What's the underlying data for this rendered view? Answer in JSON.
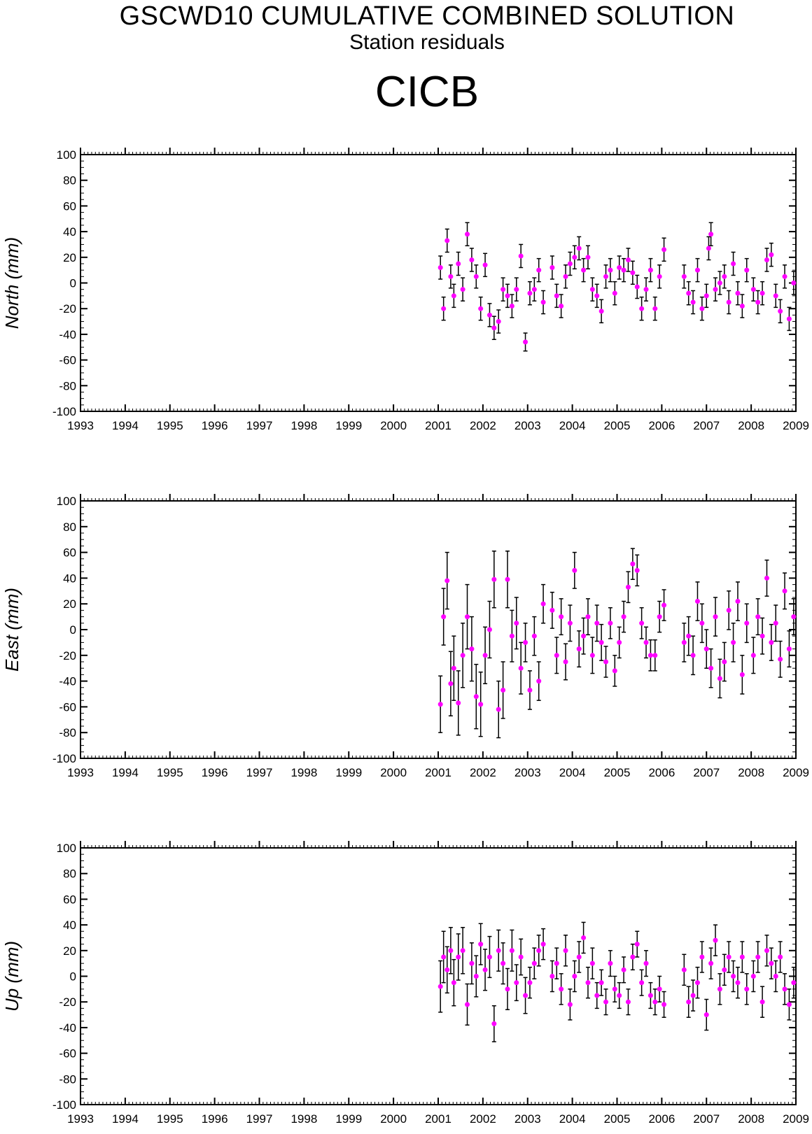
{
  "header": {
    "title": "GSCWD10 CUMULATIVE COMBINED SOLUTION",
    "subtitle": "Station residuals",
    "station": "CICB"
  },
  "colors": {
    "point": "#ff00ff",
    "errorbar": "#000000",
    "axis": "#000000"
  },
  "chart_data": [
    {
      "type": "scatter",
      "ylabel": "North (mm)",
      "xlim": [
        1993,
        2009
      ],
      "ylim": [
        -100,
        100
      ],
      "xticks": [
        "1993",
        "1994",
        "1995",
        "1996",
        "1997",
        "1998",
        "1999",
        "2000",
        "2001",
        "2002",
        "2003",
        "2004",
        "2005",
        "2006",
        "2007",
        "2008",
        "2009"
      ],
      "yticks": [
        "100",
        "80",
        "60",
        "40",
        "20",
        "0",
        "-20",
        "-40",
        "-60",
        "-80",
        "-100"
      ],
      "grid": false,
      "series": [
        {
          "x": [
            2001.05,
            2001.12,
            2001.2,
            2001.28,
            2001.35,
            2001.45,
            2001.55,
            2001.65,
            2001.75,
            2001.85,
            2001.95,
            2002.05,
            2002.15,
            2002.25,
            2002.35,
            2002.45,
            2002.55,
            2002.65,
            2002.75,
            2002.85,
            2002.95,
            2003.05,
            2003.15,
            2003.25,
            2003.35,
            2003.55,
            2003.65,
            2003.75,
            2003.85,
            2003.95,
            2004.05,
            2004.15,
            2004.25,
            2004.35,
            2004.45,
            2004.55,
            2004.65,
            2004.75,
            2004.85,
            2004.95,
            2005.05,
            2005.15,
            2005.25,
            2005.35,
            2005.45,
            2005.55,
            2005.65,
            2005.75,
            2005.85,
            2005.95,
            2006.05,
            2006.5,
            2006.6,
            2006.7,
            2006.8,
            2006.9,
            2007.0,
            2007.05,
            2007.1,
            2007.2,
            2007.3,
            2007.4,
            2007.5,
            2007.6,
            2007.7,
            2007.8,
            2007.9,
            2008.05,
            2008.15,
            2008.25,
            2008.35,
            2008.45,
            2008.55,
            2008.65,
            2008.75,
            2008.85,
            2008.95
          ],
          "y": [
            12,
            -20,
            33,
            5,
            -10,
            15,
            -5,
            38,
            18,
            5,
            -20,
            14,
            -25,
            -35,
            -30,
            -5,
            -10,
            -18,
            -5,
            21,
            -46,
            -8,
            -5,
            10,
            -15,
            12,
            -10,
            -18,
            5,
            15,
            20,
            27,
            10,
            20,
            -5,
            -10,
            -22,
            5,
            10,
            -8,
            12,
            10,
            18,
            8,
            -3,
            -20,
            -5,
            10,
            -20,
            5,
            26,
            5,
            -8,
            -15,
            10,
            -20,
            -10,
            27,
            38,
            -5,
            0,
            5,
            -15,
            15,
            -8,
            -18,
            10,
            -5,
            -15,
            -8,
            18,
            22,
            -10,
            -22,
            5,
            -28,
            0
          ],
          "err": [
            9,
            9,
            9,
            9,
            9,
            9,
            9,
            9,
            9,
            9,
            9,
            9,
            9,
            9,
            9,
            9,
            9,
            9,
            9,
            9,
            7,
            9,
            9,
            9,
            9,
            9,
            9,
            9,
            9,
            9,
            9,
            9,
            9,
            9,
            9,
            9,
            9,
            9,
            9,
            9,
            9,
            9,
            9,
            9,
            9,
            9,
            9,
            9,
            9,
            9,
            9,
            9,
            9,
            9,
            9,
            9,
            9,
            9,
            9,
            9,
            9,
            9,
            9,
            9,
            9,
            9,
            9,
            9,
            9,
            9,
            9,
            9,
            9,
            9,
            9,
            9,
            9
          ]
        }
      ]
    },
    {
      "type": "scatter",
      "ylabel": "East (mm)",
      "xlim": [
        1993,
        2009
      ],
      "ylim": [
        -100,
        100
      ],
      "xticks": [
        "1993",
        "1994",
        "1995",
        "1996",
        "1997",
        "1998",
        "1999",
        "2000",
        "2001",
        "2002",
        "2003",
        "2004",
        "2005",
        "2006",
        "2007",
        "2008",
        "2009"
      ],
      "yticks": [
        "100",
        "80",
        "60",
        "40",
        "20",
        "0",
        "-20",
        "-40",
        "-60",
        "-80",
        "-100"
      ],
      "grid": false,
      "series": [
        {
          "x": [
            2001.05,
            2001.12,
            2001.2,
            2001.28,
            2001.35,
            2001.45,
            2001.55,
            2001.65,
            2001.75,
            2001.85,
            2001.95,
            2002.05,
            2002.15,
            2002.25,
            2002.35,
            2002.45,
            2002.55,
            2002.65,
            2002.75,
            2002.85,
            2002.95,
            2003.05,
            2003.15,
            2003.25,
            2003.35,
            2003.55,
            2003.65,
            2003.75,
            2003.85,
            2003.95,
            2004.05,
            2004.15,
            2004.25,
            2004.35,
            2004.45,
            2004.55,
            2004.65,
            2004.75,
            2004.85,
            2004.95,
            2005.05,
            2005.15,
            2005.25,
            2005.35,
            2005.45,
            2005.55,
            2005.65,
            2005.75,
            2005.85,
            2005.95,
            2006.05,
            2006.5,
            2006.6,
            2006.7,
            2006.8,
            2006.9,
            2007.0,
            2007.1,
            2007.2,
            2007.3,
            2007.4,
            2007.5,
            2007.6,
            2007.7,
            2007.8,
            2007.9,
            2008.05,
            2008.15,
            2008.25,
            2008.35,
            2008.45,
            2008.55,
            2008.65,
            2008.75,
            2008.85,
            2008.95
          ],
          "y": [
            -58,
            10,
            38,
            -42,
            -30,
            -57,
            -20,
            10,
            -15,
            -52,
            -58,
            -20,
            0,
            39,
            -62,
            -47,
            39,
            -5,
            5,
            -30,
            -10,
            -47,
            -5,
            -40,
            20,
            15,
            -20,
            10,
            -25,
            5,
            46,
            -15,
            -5,
            10,
            -20,
            5,
            -10,
            -25,
            5,
            -32,
            -10,
            10,
            33,
            51,
            46,
            5,
            -10,
            -20,
            -20,
            10,
            19,
            -10,
            -5,
            -20,
            22,
            5,
            -15,
            -30,
            10,
            -38,
            -25,
            15,
            -10,
            22,
            -35,
            5,
            -20,
            10,
            -5,
            40,
            -10,
            5,
            -23,
            30,
            -15,
            10
          ],
          "err": [
            22,
            22,
            22,
            25,
            25,
            25,
            25,
            25,
            25,
            25,
            25,
            22,
            22,
            22,
            22,
            22,
            22,
            20,
            20,
            20,
            15,
            15,
            15,
            15,
            15,
            14,
            14,
            14,
            14,
            14,
            14,
            14,
            14,
            14,
            14,
            14,
            14,
            12,
            12,
            12,
            12,
            12,
            12,
            12,
            12,
            12,
            12,
            12,
            12,
            12,
            12,
            15,
            15,
            15,
            15,
            15,
            15,
            15,
            15,
            15,
            15,
            15,
            15,
            15,
            15,
            15,
            14,
            14,
            14,
            14,
            14,
            14,
            14,
            14,
            14,
            14
          ]
        }
      ]
    },
    {
      "type": "scatter",
      "ylabel": "Up (mm)",
      "xlim": [
        1993,
        2009
      ],
      "ylim": [
        -100,
        100
      ],
      "xticks": [
        "1993",
        "1994",
        "1995",
        "1996",
        "1997",
        "1998",
        "1999",
        "2000",
        "2001",
        "2002",
        "2003",
        "2004",
        "2005",
        "2006",
        "2007",
        "2008",
        "2009"
      ],
      "yticks": [
        "100",
        "80",
        "60",
        "40",
        "20",
        "0",
        "-20",
        "-40",
        "-60",
        "-80",
        "-100"
      ],
      "grid": false,
      "series": [
        {
          "x": [
            2001.05,
            2001.12,
            2001.2,
            2001.28,
            2001.35,
            2001.45,
            2001.55,
            2001.65,
            2001.75,
            2001.85,
            2001.95,
            2002.05,
            2002.15,
            2002.25,
            2002.35,
            2002.45,
            2002.55,
            2002.65,
            2002.75,
            2002.85,
            2002.95,
            2003.05,
            2003.15,
            2003.25,
            2003.35,
            2003.55,
            2003.65,
            2003.75,
            2003.85,
            2003.95,
            2004.05,
            2004.15,
            2004.25,
            2004.35,
            2004.45,
            2004.55,
            2004.65,
            2004.75,
            2004.85,
            2004.95,
            2005.05,
            2005.15,
            2005.25,
            2005.35,
            2005.45,
            2005.55,
            2005.65,
            2005.75,
            2005.85,
            2005.95,
            2006.05,
            2006.5,
            2006.6,
            2006.7,
            2006.8,
            2006.9,
            2007.0,
            2007.1,
            2007.2,
            2007.3,
            2007.4,
            2007.5,
            2007.6,
            2007.7,
            2007.8,
            2007.9,
            2008.05,
            2008.15,
            2008.25,
            2008.35,
            2008.45,
            2008.55,
            2008.65,
            2008.75,
            2008.85,
            2008.95
          ],
          "y": [
            -8,
            15,
            5,
            20,
            -5,
            15,
            20,
            -22,
            10,
            0,
            25,
            5,
            15,
            -37,
            20,
            10,
            -10,
            20,
            -5,
            15,
            -15,
            -5,
            10,
            20,
            25,
            0,
            10,
            -10,
            20,
            -22,
            0,
            15,
            30,
            -5,
            10,
            -15,
            -5,
            -20,
            10,
            -10,
            -15,
            5,
            -20,
            15,
            25,
            -5,
            10,
            -15,
            -20,
            -10,
            -22,
            5,
            -20,
            -15,
            -5,
            15,
            -30,
            10,
            28,
            -10,
            5,
            15,
            0,
            -5,
            15,
            -10,
            0,
            15,
            -20,
            20,
            10,
            0,
            15,
            -10,
            -22,
            -5
          ],
          "err": [
            20,
            20,
            18,
            18,
            18,
            18,
            18,
            16,
            16,
            16,
            16,
            16,
            16,
            14,
            16,
            16,
            16,
            16,
            14,
            14,
            14,
            12,
            12,
            12,
            12,
            12,
            12,
            12,
            12,
            12,
            12,
            12,
            12,
            12,
            12,
            10,
            10,
            10,
            10,
            10,
            10,
            10,
            10,
            10,
            10,
            10,
            10,
            10,
            10,
            10,
            10,
            12,
            12,
            12,
            12,
            12,
            12,
            12,
            12,
            12,
            12,
            12,
            12,
            12,
            12,
            12,
            12,
            12,
            12,
            12,
            12,
            12,
            12,
            12,
            12,
            12
          ]
        }
      ]
    }
  ]
}
